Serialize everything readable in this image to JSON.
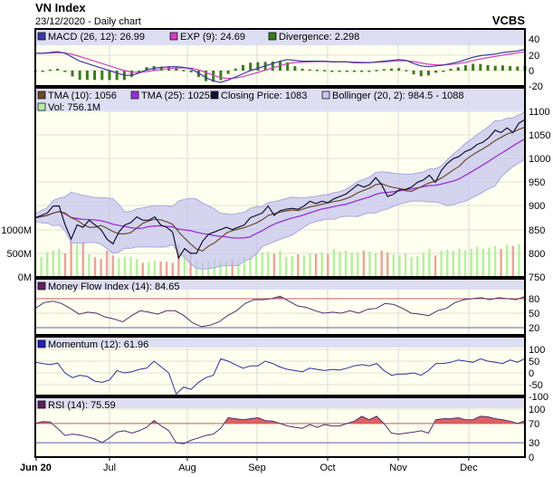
{
  "header": {
    "title": "VN Index",
    "subtitle": "23/12/2020 - Daily chart",
    "brand": "VCBS"
  },
  "colors": {
    "panel_bg": "#fffff0",
    "legend_bg": "#dcdcf2",
    "up_volume": "#b4eea4",
    "down_volume": "#e8a49a",
    "bollinger": "#c6c6ee",
    "tma10": "#6b4a2a",
    "tma25": "#9a30d8",
    "close": "#101030",
    "macd": "#3a3aa8",
    "exp": "#d040c0",
    "divergence": "#3a7a20",
    "overbought": "#e06060",
    "oversold": "#6060e0"
  },
  "chart_data": [
    {
      "type": "line",
      "panel": "macd",
      "legend": [
        "MACD (26, 12): 26.99",
        "EXP (9): 24.69",
        "Divergence: 2.298"
      ],
      "yticks": [
        "40",
        "20",
        "0",
        "-20"
      ],
      "ylim": [
        -20,
        40
      ],
      "macd": [
        22,
        22,
        23,
        24,
        22,
        17,
        12,
        9,
        6,
        3,
        0,
        -3,
        -6,
        -6,
        -3,
        1,
        3,
        4,
        5,
        5,
        4,
        2,
        -3,
        -9,
        -13,
        -15,
        -12,
        -8,
        -4,
        0,
        3,
        6,
        9,
        12,
        14,
        13,
        12,
        12,
        12,
        12,
        11,
        11,
        11,
        10,
        10,
        10,
        11,
        12,
        13,
        14,
        13,
        9,
        6,
        5,
        6,
        7,
        9,
        11,
        14,
        17,
        19,
        20,
        21,
        23,
        24,
        25,
        26.99
      ]
    },
    {
      "type": "line",
      "panel": "price",
      "legend": [
        "TMA (10): 1056",
        "TMA (25): 1025",
        "Closing Price: 1083",
        "Bollinger (20, 2): 984.5 - 1088",
        "Vol: 756.1M"
      ],
      "yticks": [
        "1100",
        "1050",
        "1000",
        "950",
        "900",
        "850",
        "800",
        "750"
      ],
      "ylim": [
        750,
        1100
      ],
      "vol_ticks": [
        "1000M",
        "500M",
        "0M"
      ],
      "x_range": [
        "2020-06-01",
        "2020-12-23"
      ],
      "close": [
        875,
        880,
        885,
        900,
        900,
        860,
        830,
        860,
        855,
        870,
        860,
        850,
        830,
        820,
        845,
        860,
        865,
        877,
        870,
        870,
        877,
        860,
        855,
        845,
        790,
        810,
        800,
        800,
        825,
        840,
        845,
        850,
        855,
        850,
        855,
        860,
        875,
        880,
        885,
        900,
        880,
        890,
        893,
        895,
        893,
        900,
        910,
        905,
        910,
        907,
        915,
        920,
        925,
        935,
        945,
        940,
        945,
        960,
        945,
        920,
        925,
        935,
        935,
        940,
        950,
        955,
        965,
        950,
        975,
        990,
        1000,
        1005,
        1015,
        1020,
        1030,
        1035,
        1045,
        1060,
        1055,
        1065,
        1055,
        1075,
        1083
      ],
      "volume": [
        450,
        420,
        520,
        560,
        600,
        500,
        780,
        700,
        760,
        480,
        420,
        380,
        560,
        460,
        400,
        420,
        430,
        380,
        300,
        310,
        350,
        330,
        320,
        300,
        700,
        560,
        620,
        360,
        330,
        360,
        380,
        370,
        360,
        390,
        380,
        420,
        460,
        500,
        520,
        540,
        490,
        560,
        420,
        440,
        480,
        460,
        500,
        490,
        520,
        480,
        590,
        540,
        560,
        520,
        520,
        560,
        540,
        500,
        560,
        520,
        480,
        460,
        500,
        420,
        440,
        520,
        600,
        460,
        560,
        580,
        560,
        600,
        560,
        600,
        640,
        600,
        620,
        660,
        600,
        680,
        660,
        700,
        756.1
      ]
    },
    {
      "type": "line",
      "panel": "mfi",
      "legend": [
        "Money Flow Index (14): 84.65"
      ],
      "yticks": [
        "80",
        "50",
        "20"
      ],
      "levels": [
        80,
        20
      ],
      "values": [
        60,
        72,
        75,
        70,
        60,
        48,
        52,
        50,
        42,
        38,
        32,
        45,
        55,
        52,
        48,
        55,
        55,
        45,
        30,
        22,
        25,
        32,
        45,
        55,
        70,
        78,
        78,
        80,
        85,
        75,
        65,
        62,
        55,
        50,
        52,
        50,
        55,
        50,
        58,
        60,
        70,
        68,
        60,
        50,
        48,
        45,
        55,
        60,
        72,
        78,
        80,
        82,
        78,
        82,
        80,
        78,
        84.65
      ]
    },
    {
      "type": "line",
      "panel": "momentum",
      "legend": [
        "Momentum (12): 61.96"
      ],
      "yticks": [
        "100",
        "50",
        "0",
        "-50",
        "-100"
      ],
      "ylim": [
        -100,
        100
      ],
      "values": [
        45,
        40,
        35,
        42,
        0,
        -20,
        -10,
        -15,
        -35,
        -40,
        -30,
        10,
        0,
        5,
        15,
        20,
        50,
        25,
        0,
        -90,
        -60,
        -70,
        -40,
        -20,
        -10,
        60,
        50,
        35,
        20,
        30,
        30,
        50,
        40,
        25,
        15,
        10,
        5,
        20,
        15,
        10,
        15,
        12,
        20,
        30,
        35,
        30,
        40,
        10,
        -10,
        -5,
        -5,
        0,
        -10,
        10,
        40,
        40,
        45,
        55,
        50,
        45,
        60,
        50,
        45,
        40,
        55,
        45,
        61.96
      ]
    },
    {
      "type": "line",
      "panel": "rsi",
      "legend": [
        "RSI (14): 75.59"
      ],
      "yticks": [
        "100",
        "70",
        "30",
        "0"
      ],
      "levels": [
        70,
        30
      ],
      "ylim": [
        0,
        100
      ],
      "values": [
        70,
        74,
        73,
        60,
        45,
        48,
        46,
        42,
        38,
        30,
        40,
        52,
        55,
        50,
        55,
        62,
        76,
        65,
        55,
        30,
        28,
        35,
        40,
        45,
        48,
        60,
        82,
        80,
        78,
        80,
        82,
        76,
        75,
        70,
        65,
        62,
        60,
        68,
        62,
        68,
        65,
        65,
        70,
        75,
        85,
        78,
        85,
        70,
        50,
        48,
        50,
        52,
        55,
        50,
        78,
        80,
        80,
        82,
        78,
        78,
        85,
        84,
        80,
        78,
        75,
        70,
        75.59
      ]
    }
  ],
  "x_axis": {
    "labels": [
      "Jun 20",
      "Jul",
      "Aug",
      "Sep",
      "Oct",
      "Nov",
      "Dec"
    ]
  }
}
